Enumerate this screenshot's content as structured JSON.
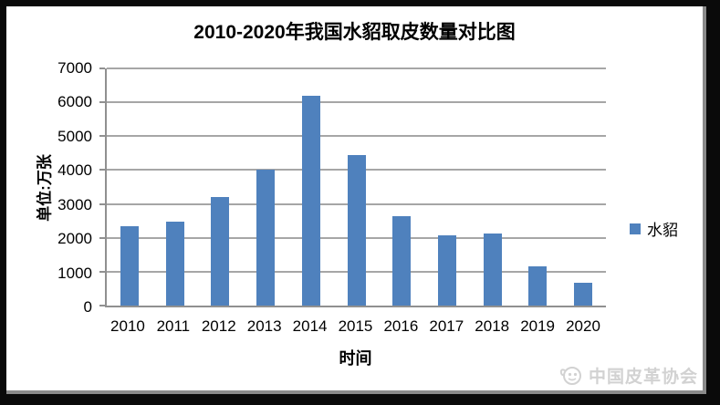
{
  "chart_data": {
    "type": "bar",
    "title": "2010-2020年我国水貂取皮数量对比图",
    "categories": [
      "2010",
      "2011",
      "2012",
      "2013",
      "2014",
      "2015",
      "2016",
      "2017",
      "2018",
      "2019",
      "2020"
    ],
    "series": [
      {
        "name": "水貂",
        "color": "#4F81BD",
        "values": [
          2350,
          2480,
          3200,
          4000,
          6200,
          4450,
          2650,
          2070,
          2120,
          1170,
          670
        ]
      }
    ],
    "xlabel": "时间",
    "ylabel": "单位:万张",
    "ylim": [
      0,
      7000
    ],
    "ytick_interval": 1000,
    "yticks": [
      0,
      1000,
      2000,
      3000,
      4000,
      5000,
      6000,
      7000
    ],
    "grid": true,
    "legend_position": "right-middle"
  },
  "watermark": {
    "text": "中国皮革协会"
  },
  "colors": {
    "bar": "#4F81BD",
    "gridline": "#a6a6a6",
    "axis": "#909090",
    "frame": "#000000",
    "sheet": "#ffffff",
    "watermark_text": "#d2d2d2"
  }
}
